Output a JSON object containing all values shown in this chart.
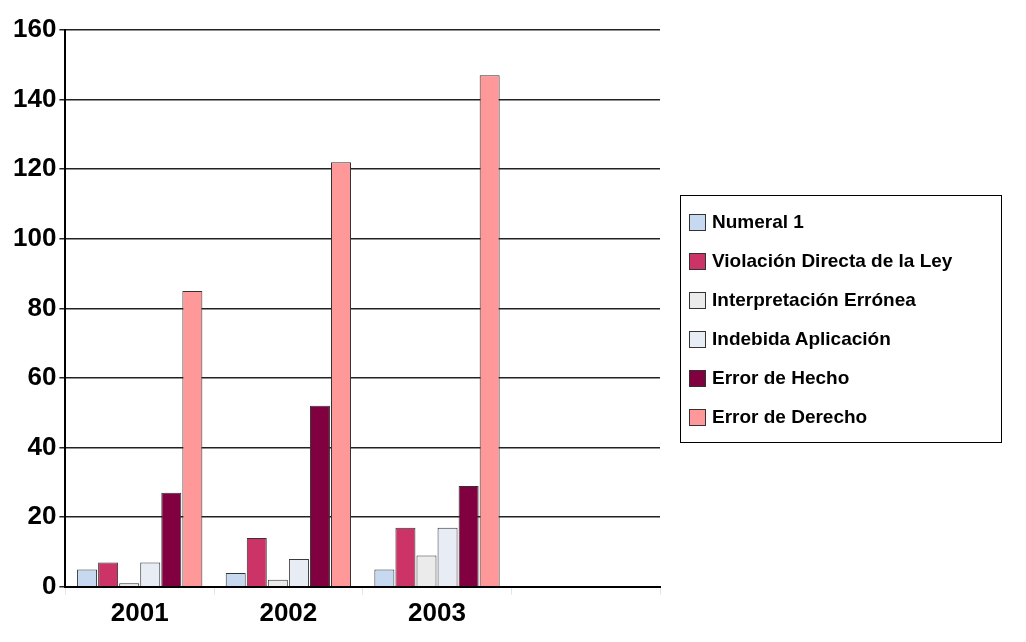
{
  "chart_data": {
    "type": "bar",
    "categories": [
      "2001",
      "2002",
      "2003",
      null
    ],
    "series": [
      {
        "name": "Numeral 1",
        "color": "#c6d9f0",
        "values": [
          5,
          4,
          5,
          null
        ]
      },
      {
        "name": "Violación Directa de la Ley",
        "color": "#cc3366",
        "values": [
          7,
          14,
          17,
          null
        ]
      },
      {
        "name": "Interpretación Errónea",
        "color": "#ebebeb",
        "values": [
          1,
          2,
          9,
          null
        ]
      },
      {
        "name": "Indebida Aplicación",
        "color": "#e8edf5",
        "values": [
          7,
          8,
          17,
          null
        ]
      },
      {
        "name": "Error de Hecho",
        "color": "#800040",
        "values": [
          27,
          52,
          29,
          null
        ]
      },
      {
        "name": "Error de Derecho",
        "color": "#ff9999",
        "values": [
          85,
          122,
          147,
          null
        ]
      }
    ],
    "ylim": [
      0,
      160
    ],
    "yticks": [
      0,
      20,
      40,
      60,
      80,
      100,
      120,
      140,
      160
    ],
    "grid": "y",
    "legend": "right"
  }
}
